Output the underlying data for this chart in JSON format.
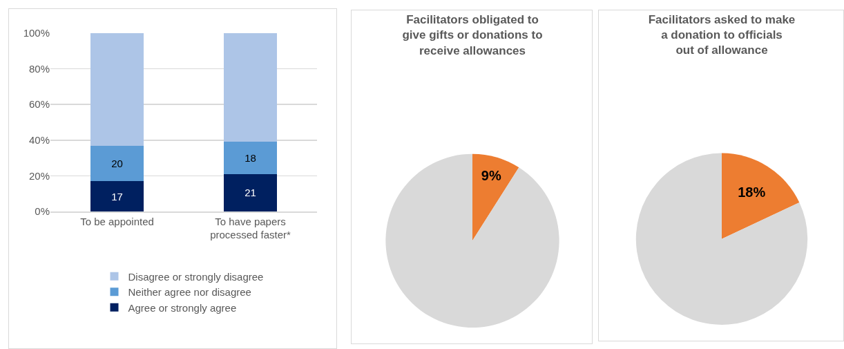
{
  "chart_data": [
    {
      "type": "bar",
      "stacked": true,
      "categories": [
        "To be appointed",
        "To have papers processed faster*"
      ],
      "series": [
        {
          "name": "Agree or strongly agree",
          "color": "#002060",
          "values": [
            17,
            21
          ],
          "value_labels": [
            "17",
            "21"
          ]
        },
        {
          "name": "Neither agree nor disagree",
          "color": "#5b9bd5",
          "values": [
            20,
            18
          ],
          "value_labels": [
            "20",
            "18"
          ]
        },
        {
          "name": "Disagree or strongly disagree",
          "color": "#adc5e7",
          "values": [
            63,
            61
          ]
        }
      ],
      "ylim": [
        0,
        100
      ],
      "yticks": [
        {
          "value": 0,
          "label": "0%"
        },
        {
          "value": 20,
          "label": "20%"
        },
        {
          "value": 40,
          "label": "40%"
        },
        {
          "value": 60,
          "label": "60%"
        },
        {
          "value": 80,
          "label": "80%"
        },
        {
          "value": 100,
          "label": "100%"
        }
      ],
      "grid": "y",
      "legend": "bottom"
    },
    {
      "type": "pie",
      "title": "Facilitators obligated to give gifts or donations to receive allowances",
      "categories": [
        null,
        null
      ],
      "values": [
        9,
        91
      ],
      "colors": [
        "#ed7d31",
        "#d9d9d9"
      ],
      "value_labels": [
        "9%",
        null
      ]
    },
    {
      "type": "pie",
      "title": "Facilitators asked to make a donation to officials out of allowance",
      "categories": [
        null,
        null
      ],
      "values": [
        18,
        82
      ],
      "colors": [
        "#ed7d31",
        "#d9d9d9"
      ],
      "value_labels": [
        "18%",
        null
      ]
    }
  ]
}
